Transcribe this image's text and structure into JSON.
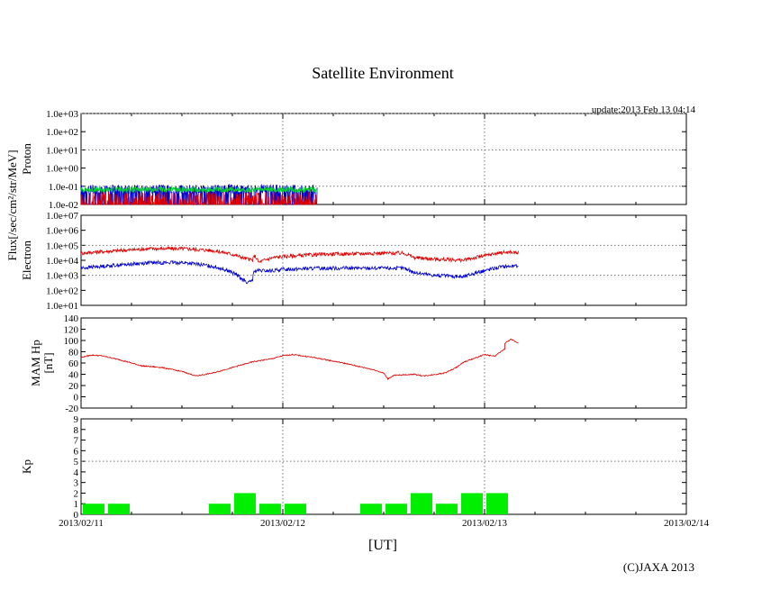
{
  "chart_data": {
    "type": "line",
    "title": "Satellite Environment",
    "update_text": "update:2013 Feb 13 04:14",
    "copyright": "(C)JAXA 2013",
    "xlabel": "[UT]",
    "x_ticks": [
      "2013/02/11",
      "2013/02/12",
      "2013/02/13",
      "2013/02/14"
    ],
    "data_end_day": 1.17,
    "shared_ylabel": "Flux[/sec/cm²/str/MeV]",
    "colors": {
      "red": "#e00000",
      "blue": "#0000d0",
      "green": "#00d030",
      "kp_bar": "#00ee00"
    },
    "panels": [
      {
        "id": "proton",
        "ylabel": "Proton",
        "scale": "log",
        "ylim": [
          0.01,
          1000
        ],
        "y_ticks": [
          "1.0e+03",
          "1.0e+02",
          "1.0e+01",
          "1.0e+00",
          "1.0e-01",
          "1.0e-02"
        ],
        "series": [
          {
            "color": "blue",
            "level": 0.07,
            "min": 0.01,
            "max": 0.1
          },
          {
            "color": "green",
            "level": 0.065,
            "min": 0.05,
            "max": 0.08
          },
          {
            "color": "red",
            "level": 0.015,
            "min": 0.01,
            "max": 0.05
          }
        ]
      },
      {
        "id": "electron",
        "ylabel": "Electron",
        "scale": "log",
        "ylim": [
          10,
          10000000
        ],
        "y_ticks": [
          "1.0e+07",
          "1.0e+06",
          "1.0e+05",
          "1.0e+04",
          "1.0e+03",
          "1.0e+02",
          "1.0e+01"
        ],
        "series": [
          {
            "color": "red",
            "points": [
              [
                0,
                30000
              ],
              [
                0.2,
                45000
              ],
              [
                0.35,
                60000
              ],
              [
                0.5,
                60000
              ],
              [
                0.65,
                45000
              ],
              [
                0.75,
                25000
              ],
              [
                0.8,
                15000
              ],
              [
                0.85,
                10000
              ],
              [
                0.86,
                20000
              ],
              [
                0.88,
                7000
              ],
              [
                0.95,
                15000
              ],
              [
                1.0,
                18000
              ],
              [
                1.2,
                25000
              ],
              [
                1.5,
                30000
              ],
              [
                1.6,
                30000
              ],
              [
                1.65,
                15000
              ],
              [
                1.75,
                12000
              ],
              [
                1.9,
                10000
              ],
              [
                2.0,
                20000
              ],
              [
                2.1,
                35000
              ],
              [
                2.17,
                32000
              ]
            ]
          },
          {
            "color": "blue",
            "points": [
              [
                0,
                3000
              ],
              [
                0.2,
                5000
              ],
              [
                0.35,
                7000
              ],
              [
                0.5,
                7000
              ],
              [
                0.65,
                4000
              ],
              [
                0.75,
                1500
              ],
              [
                0.8,
                500
              ],
              [
                0.83,
                300
              ],
              [
                0.85,
                500
              ],
              [
                0.86,
                2000
              ],
              [
                0.95,
                2000
              ],
              [
                1.0,
                2500
              ],
              [
                1.2,
                3000
              ],
              [
                1.5,
                3000
              ],
              [
                1.6,
                3000
              ],
              [
                1.65,
                1500
              ],
              [
                1.75,
                1000
              ],
              [
                1.9,
                800
              ],
              [
                2.0,
                2000
              ],
              [
                2.1,
                4000
              ],
              [
                2.17,
                4000
              ]
            ]
          }
        ]
      },
      {
        "id": "mam",
        "ylabel": "MAM Hp",
        "ylabel2": "[nT]",
        "scale": "linear",
        "ylim": [
          -20,
          140
        ],
        "y_ticks": [
          "140",
          "120",
          "100",
          "80",
          "60",
          "40",
          "20",
          "0",
          "-20"
        ],
        "series": [
          {
            "color": "red",
            "points": [
              [
                0,
                70
              ],
              [
                0.05,
                74
              ],
              [
                0.1,
                73
              ],
              [
                0.2,
                65
              ],
              [
                0.3,
                55
              ],
              [
                0.4,
                52
              ],
              [
                0.5,
                45
              ],
              [
                0.57,
                37
              ],
              [
                0.65,
                42
              ],
              [
                0.75,
                52
              ],
              [
                0.85,
                62
              ],
              [
                0.95,
                68
              ],
              [
                1.0,
                73
              ],
              [
                1.05,
                75
              ],
              [
                1.15,
                70
              ],
              [
                1.3,
                60
              ],
              [
                1.45,
                48
              ],
              [
                1.5,
                42
              ],
              [
                1.52,
                32
              ],
              [
                1.55,
                38
              ],
              [
                1.65,
                40
              ],
              [
                1.7,
                37
              ],
              [
                1.8,
                42
              ],
              [
                1.85,
                50
              ],
              [
                1.9,
                62
              ],
              [
                2.0,
                75
              ],
              [
                2.05,
                72
              ],
              [
                2.1,
                85
              ],
              [
                2.1,
                95
              ],
              [
                2.13,
                102
              ],
              [
                2.17,
                95
              ]
            ]
          }
        ]
      },
      {
        "id": "kp",
        "ylabel": "Kp",
        "scale": "linear",
        "ylim": [
          0,
          9
        ],
        "y_ticks": [
          "9",
          "8",
          "7",
          "6",
          "5",
          "4",
          "3",
          "2",
          "1",
          "0"
        ],
        "reference_level": 5,
        "bars": [
          {
            "start": 0.0,
            "value": 1
          },
          {
            "start": 0.125,
            "value": 1
          },
          {
            "start": 0.625,
            "value": 1
          },
          {
            "start": 0.75,
            "value": 2
          },
          {
            "start": 0.875,
            "value": 1
          },
          {
            "start": 1.0,
            "value": 1
          },
          {
            "start": 1.375,
            "value": 1
          },
          {
            "start": 1.5,
            "value": 1
          },
          {
            "start": 1.625,
            "value": 2
          },
          {
            "start": 1.75,
            "value": 1
          },
          {
            "start": 1.875,
            "value": 2
          },
          {
            "start": 2.0,
            "value": 2
          }
        ]
      }
    ]
  }
}
